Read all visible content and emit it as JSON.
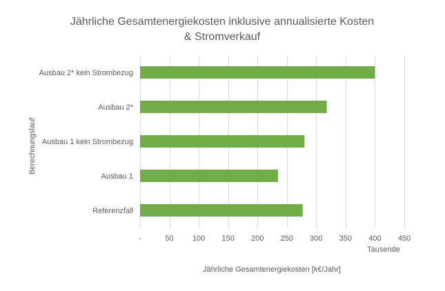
{
  "chart_data": {
    "type": "bar",
    "orientation": "horizontal",
    "title_lines": [
      "Jährliche Gesamtenergiekosten inklusive annualisierte Kosten",
      "& Stromverkauf"
    ],
    "categories": [
      "Ausbau 2* kein Strombezug",
      "Ausbau 2*",
      "Ausbau 1 kein Strombezug",
      "Ausbau 1",
      "Referenzfall"
    ],
    "values": [
      400,
      318,
      280,
      235,
      277
    ],
    "xlim": [
      0,
      450
    ],
    "xticks": [
      0,
      50,
      100,
      150,
      200,
      250,
      300,
      350,
      400,
      450
    ],
    "xtick_labels": [
      "-",
      "50",
      "100",
      "150",
      "200",
      "250",
      "300",
      "350",
      "400",
      "450"
    ],
    "display_unit_label": "Tausende",
    "xlabel": "Jährliche Gesamtenergiekosten  [k€/Jahr]",
    "ylabel": "Berechnungslauf",
    "grid": true,
    "legend": "none",
    "bar_color": "#70ad47"
  }
}
